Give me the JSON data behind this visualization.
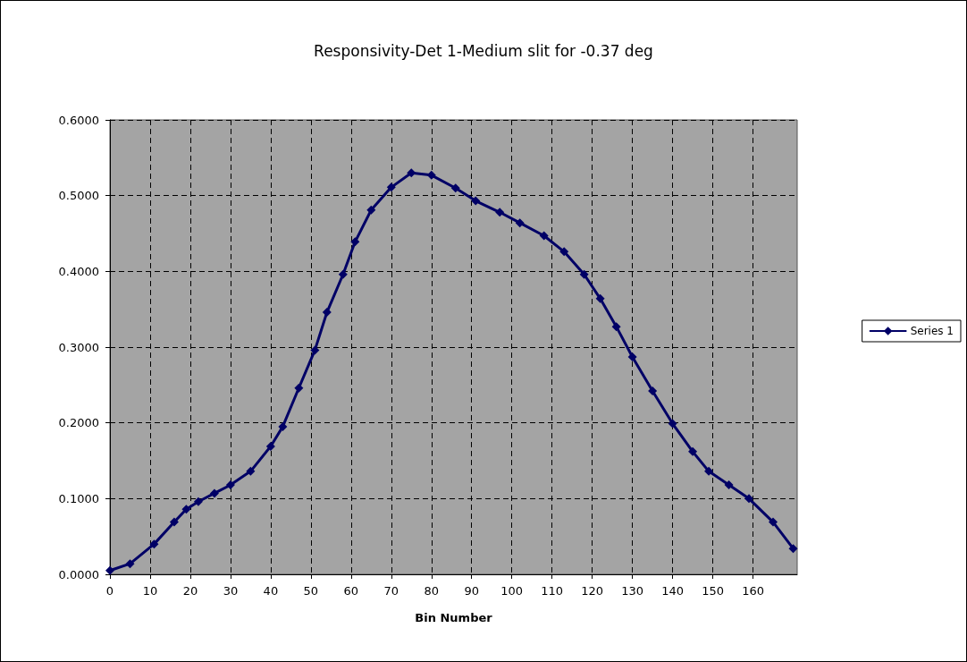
{
  "chart_data": {
    "type": "line",
    "title": "Responsivity-Det 1-Medium slit for -0.37 deg",
    "xlabel": "Bin Number",
    "series": [
      {
        "name": "Series 1",
        "color": "#000066",
        "x": [
          0,
          5,
          11,
          16,
          19,
          22,
          26,
          30,
          35,
          40,
          43,
          47,
          51,
          54,
          58,
          61,
          65,
          70,
          75,
          80,
          86,
          91,
          97,
          102,
          108,
          113,
          118,
          122,
          126,
          130,
          135,
          140,
          145,
          149,
          154,
          159,
          165,
          170
        ],
        "values": [
          0.005,
          0.014,
          0.04,
          0.069,
          0.086,
          0.096,
          0.107,
          0.118,
          0.136,
          0.169,
          0.195,
          0.246,
          0.296,
          0.346,
          0.396,
          0.439,
          0.481,
          0.511,
          0.53,
          0.527,
          0.51,
          0.493,
          0.478,
          0.464,
          0.447,
          0.426,
          0.396,
          0.364,
          0.327,
          0.287,
          0.242,
          0.199,
          0.162,
          0.136,
          0.118,
          0.1,
          0.069,
          0.034
        ]
      }
    ],
    "xlim": [
      0,
      171
    ],
    "xticks": [
      0,
      10,
      20,
      30,
      40,
      50,
      60,
      70,
      80,
      90,
      100,
      110,
      120,
      130,
      140,
      150,
      160
    ],
    "ylim": [
      0,
      0.6
    ],
    "yticks": [
      {
        "value": 0,
        "label": "0.0000"
      },
      {
        "value": 0.1,
        "label": "0.1000"
      },
      {
        "value": 0.2,
        "label": "0.2000"
      },
      {
        "value": 0.3,
        "label": "0.3000"
      },
      {
        "value": 0.4,
        "label": "0.4000"
      },
      {
        "value": 0.5,
        "label": "0.5000"
      },
      {
        "value": 0.6,
        "label": "0.6000"
      }
    ],
    "grid": true,
    "legend": "right",
    "marker": "diamond",
    "line_style": "solid"
  }
}
